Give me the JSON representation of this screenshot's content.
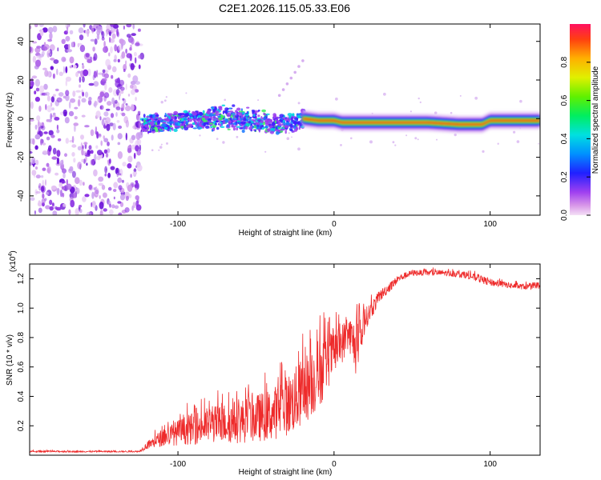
{
  "title": "C2E1.2026.115.05.33.E06",
  "colors": {
    "snr_line": "#ee2b2b",
    "track_core": "#ee1c1c",
    "noise": "#7a1fe0"
  },
  "chart_data": [
    {
      "type": "heatmap",
      "title": "",
      "xlabel": "Height of straight line (km)",
      "ylabel": "Frequency (Hz)",
      "xlim": [
        -195,
        132
      ],
      "ylim": [
        -50,
        49
      ],
      "x_ticks": [
        -100,
        0,
        100
      ],
      "x_tick_labels": [
        "-100",
        "0",
        "100"
      ],
      "y_ticks": [
        -40,
        -20,
        0,
        20,
        40
      ],
      "y_tick_labels": [
        "-40",
        "-20",
        "0",
        "20",
        "40"
      ],
      "noise_region_x": [
        -195,
        -123
      ],
      "track": [
        {
          "x": -123,
          "f": -3
        },
        {
          "x": -110,
          "f": -2
        },
        {
          "x": -95,
          "f": -1
        },
        {
          "x": -80,
          "f": 0
        },
        {
          "x": -65,
          "f": 1
        },
        {
          "x": -50,
          "f": -2
        },
        {
          "x": -35,
          "f": -3
        },
        {
          "x": -25,
          "f": -2
        },
        {
          "x": -20,
          "f": 0
        },
        {
          "x": -10,
          "f": -1
        },
        {
          "x": 0,
          "f": -1
        },
        {
          "x": 5,
          "f": -2
        },
        {
          "x": 20,
          "f": -2
        },
        {
          "x": 40,
          "f": -2
        },
        {
          "x": 60,
          "f": -2
        },
        {
          "x": 80,
          "f": -3
        },
        {
          "x": 95,
          "f": -3
        },
        {
          "x": 100,
          "f": -1
        },
        {
          "x": 115,
          "f": -1
        },
        {
          "x": 132,
          "f": -1
        }
      ],
      "colorbar": {
        "label": "Normalized spectral amplitude",
        "ticks": [
          0.0,
          0.2,
          0.4,
          0.6,
          0.8
        ],
        "tick_labels": [
          "0.0",
          "0.2",
          "0.4",
          "0.6",
          "0.8"
        ],
        "range": [
          0,
          1
        ]
      }
    },
    {
      "type": "line",
      "title": "",
      "xlabel": "Height of straight line (km)",
      "ylabel": "SNR (10 * v/v)",
      "y_multiplier": "(x10",
      "y_multiplier_exp": "4",
      "y_multiplier_close": ")",
      "xlim": [
        -195,
        132
      ],
      "ylim": [
        0,
        1.3
      ],
      "x_ticks": [
        -100,
        0,
        100
      ],
      "x_tick_labels": [
        "-100",
        "0",
        "100"
      ],
      "y_ticks": [
        0.2,
        0.4,
        0.6,
        0.8,
        1.0,
        1.2
      ],
      "y_tick_labels": [
        "0.2",
        "0.4",
        "0.6",
        "0.8",
        "1.0",
        "1.2"
      ],
      "envelope": [
        {
          "x": -195,
          "base": 0.02,
          "spread": 0.01
        },
        {
          "x": -125,
          "base": 0.02,
          "spread": 0.01
        },
        {
          "x": -120,
          "base": 0.04,
          "spread": 0.05
        },
        {
          "x": -110,
          "base": 0.06,
          "spread": 0.12
        },
        {
          "x": -95,
          "base": 0.07,
          "spread": 0.2
        },
        {
          "x": -80,
          "base": 0.08,
          "spread": 0.25
        },
        {
          "x": -60,
          "base": 0.08,
          "spread": 0.3
        },
        {
          "x": -40,
          "base": 0.1,
          "spread": 0.35
        },
        {
          "x": -25,
          "base": 0.15,
          "spread": 0.45
        },
        {
          "x": -10,
          "base": 0.3,
          "spread": 0.5
        },
        {
          "x": 0,
          "base": 0.55,
          "spread": 0.3
        },
        {
          "x": 10,
          "base": 0.7,
          "spread": 0.25
        },
        {
          "x": 15,
          "base": 0.5,
          "spread": 0.4
        },
        {
          "x": 20,
          "base": 0.85,
          "spread": 0.15
        },
        {
          "x": 30,
          "base": 1.05,
          "spread": 0.08
        },
        {
          "x": 42,
          "base": 1.18,
          "spread": 0.05
        },
        {
          "x": 50,
          "base": 1.22,
          "spread": 0.04
        },
        {
          "x": 70,
          "base": 1.22,
          "spread": 0.04
        },
        {
          "x": 85,
          "base": 1.2,
          "spread": 0.05
        },
        {
          "x": 100,
          "base": 1.15,
          "spread": 0.05
        },
        {
          "x": 115,
          "base": 1.13,
          "spread": 0.04
        },
        {
          "x": 132,
          "base": 1.12,
          "spread": 0.04
        }
      ]
    }
  ]
}
